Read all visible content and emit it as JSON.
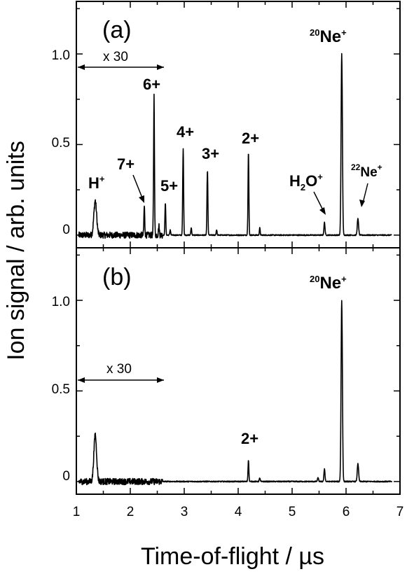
{
  "chart_data": [
    {
      "panel": "(a)",
      "type": "line",
      "xlabel": "Time-of-flight / µs",
      "ylabel": "Ion signal / arb. units",
      "xlim": [
        1,
        7
      ],
      "ylim": [
        -0.07,
        1.29
      ],
      "x_ticks": [
        "1",
        "2",
        "3",
        "4",
        "5",
        "6",
        "7"
      ],
      "y_ticks": [
        "0",
        "0.5",
        "1.0"
      ],
      "scale_annotation": {
        "text": "x 30",
        "x_from": 1.05,
        "x_to": 2.6,
        "y": 0.92
      },
      "peaks": [
        {
          "x": 1.35,
          "y": 0.19,
          "width": 0.025,
          "label": "H⁺"
        },
        {
          "x": 2.26,
          "y": 0.16,
          "width": 0.008,
          "label": "7+"
        },
        {
          "x": 2.44,
          "y": 0.77,
          "width": 0.008,
          "label": "6+"
        },
        {
          "x": 2.53,
          "y": 0.05,
          "width": 0.008
        },
        {
          "x": 2.65,
          "y": 0.18,
          "width": 0.008,
          "label": "5+"
        },
        {
          "x": 2.74,
          "y": 0.03,
          "width": 0.008
        },
        {
          "x": 2.98,
          "y": 0.48,
          "width": 0.008,
          "label": "4+"
        },
        {
          "x": 3.13,
          "y": 0.04,
          "width": 0.008
        },
        {
          "x": 3.43,
          "y": 0.36,
          "width": 0.008,
          "label": "3+"
        },
        {
          "x": 3.6,
          "y": 0.03,
          "width": 0.008
        },
        {
          "x": 4.19,
          "y": 0.46,
          "width": 0.008,
          "label": "2+"
        },
        {
          "x": 4.4,
          "y": 0.04,
          "width": 0.008
        },
        {
          "x": 5.6,
          "y": 0.07,
          "width": 0.01,
          "label": "H₂O⁺"
        },
        {
          "x": 5.92,
          "y": 1.0,
          "width": 0.012,
          "label": "²⁰Ne⁺"
        },
        {
          "x": 6.22,
          "y": 0.09,
          "width": 0.012,
          "label": "²²Ne⁺"
        }
      ]
    },
    {
      "panel": "(b)",
      "type": "line",
      "xlabel": "Time-of-flight / µs",
      "ylabel": "Ion signal / arb. units",
      "xlim": [
        1,
        7
      ],
      "ylim": [
        -0.07,
        1.29
      ],
      "x_ticks": [
        "1",
        "2",
        "3",
        "4",
        "5",
        "6",
        "7"
      ],
      "y_ticks": [
        "0",
        "0.5",
        "1.0"
      ],
      "scale_annotation": {
        "text": "x 30",
        "x_from": 1.05,
        "x_to": 2.6,
        "y": 0.55
      },
      "peaks": [
        {
          "x": 1.35,
          "y": 0.26,
          "width": 0.025
        },
        {
          "x": 4.19,
          "y": 0.12,
          "width": 0.008,
          "label": "2+"
        },
        {
          "x": 4.4,
          "y": 0.02,
          "width": 0.008
        },
        {
          "x": 5.48,
          "y": 0.02,
          "width": 0.01
        },
        {
          "x": 5.6,
          "y": 0.07,
          "width": 0.01
        },
        {
          "x": 5.92,
          "y": 1.0,
          "width": 0.012,
          "label": "²⁰Ne⁺"
        },
        {
          "x": 6.22,
          "y": 0.1,
          "width": 0.012
        }
      ]
    }
  ],
  "labels": {
    "panel_a": "(a)",
    "panel_b": "(b)",
    "x_axis_title": "Time-of-flight / µs",
    "y_axis_title": "Ion signal / arb. units",
    "scale": "x 30",
    "h_plus": "H",
    "h_plus_sup": "+",
    "seven_plus": "7+",
    "six_plus": "6+",
    "five_plus": "5+",
    "four_plus": "4+",
    "three_plus": "3+",
    "two_plus_a": "2+",
    "two_plus_b": "2+",
    "h2o_h": "H",
    "h2o_sub": "2",
    "h2o_o": "O",
    "h2o_sup": "+",
    "ne20_mass": "20",
    "ne20_el": "Ne",
    "ne20_sup": "+",
    "ne22_mass": "22",
    "ne22_el": "Ne",
    "ne22_sup": "+"
  }
}
